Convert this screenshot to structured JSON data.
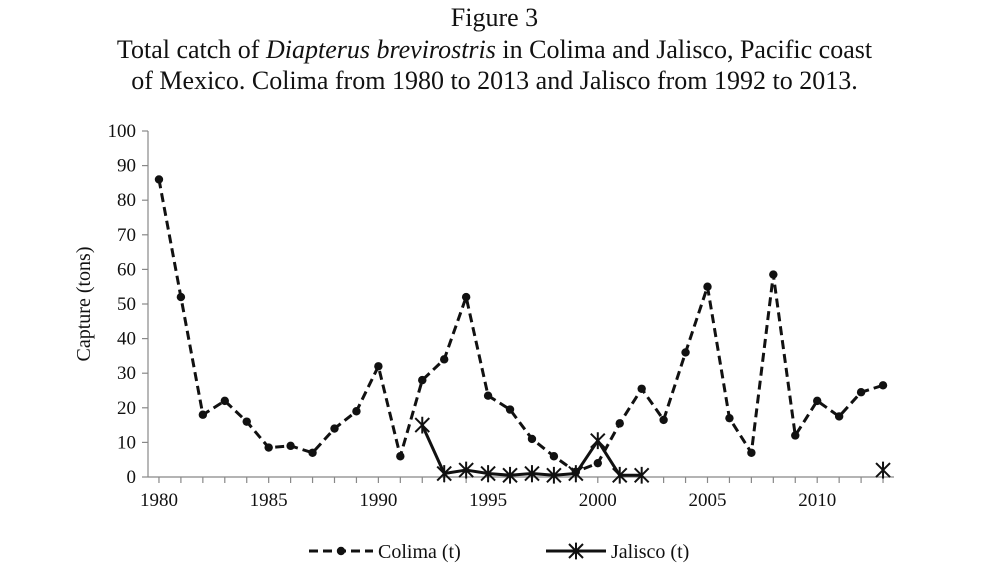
{
  "figure": {
    "label": "Figure 3",
    "caption_lines": [
      [
        "Total catch of ",
        "Diapterus brevirostris",
        " in Colima and Jalisco, Pacific coast"
      ],
      [
        "of Mexico. Colima from 1980 to 2013 and Jalisco from 1992 to 2013."
      ]
    ]
  },
  "chart_data": {
    "type": "line",
    "title": "Figure 3",
    "xlabel": "",
    "ylabel": "Capture (tons)",
    "xlim": [
      1980,
      2013
    ],
    "ylim": [
      0,
      100
    ],
    "x_ticks": [
      1980,
      1985,
      1990,
      1995,
      2000,
      2005,
      2010
    ],
    "y_ticks": [
      0,
      10,
      20,
      30,
      40,
      50,
      60,
      70,
      80,
      90,
      100
    ],
    "grid": false,
    "legend_position": "bottom",
    "series": [
      {
        "name": "Colima (t)",
        "style": "dashed-dot-marker",
        "color": "#111111",
        "points": [
          [
            1980,
            86
          ],
          [
            1981,
            52
          ],
          [
            1982,
            18
          ],
          [
            1983,
            22
          ],
          [
            1984,
            16
          ],
          [
            1985,
            8.5
          ],
          [
            1986,
            9
          ],
          [
            1987,
            7
          ],
          [
            1988,
            14
          ],
          [
            1989,
            19
          ],
          [
            1990,
            32
          ],
          [
            1991,
            6
          ],
          [
            1992,
            28
          ],
          [
            1993,
            34
          ],
          [
            1994,
            52
          ],
          [
            1995,
            23.5
          ],
          [
            1996,
            19.5
          ],
          [
            1997,
            11
          ],
          [
            1998,
            6
          ],
          [
            1999,
            1.5
          ],
          [
            2000,
            4
          ],
          [
            2001,
            15.5
          ],
          [
            2002,
            25.5
          ],
          [
            2003,
            16.5
          ],
          [
            2004,
            36
          ],
          [
            2005,
            55
          ],
          [
            2006,
            17
          ],
          [
            2007,
            7
          ],
          [
            2008,
            58.5
          ],
          [
            2009,
            12
          ],
          [
            2010,
            22
          ],
          [
            2011,
            17.5
          ],
          [
            2012,
            24.5
          ],
          [
            2013,
            26.5
          ]
        ]
      },
      {
        "name": "Jalisco (t)",
        "style": "solid-star-marker",
        "color": "#111111",
        "segments": [
          [
            [
              1992,
              15
            ],
            [
              1993,
              1
            ],
            [
              1994,
              2
            ],
            [
              1995,
              1
            ],
            [
              1996,
              0.5
            ],
            [
              1997,
              1
            ],
            [
              1998,
              0.5
            ],
            [
              1999,
              1
            ],
            [
              2000,
              10.5
            ],
            [
              2001,
              0.5
            ],
            [
              2002,
              0.5
            ]
          ],
          [
            [
              2013,
              2
            ]
          ]
        ]
      }
    ]
  }
}
